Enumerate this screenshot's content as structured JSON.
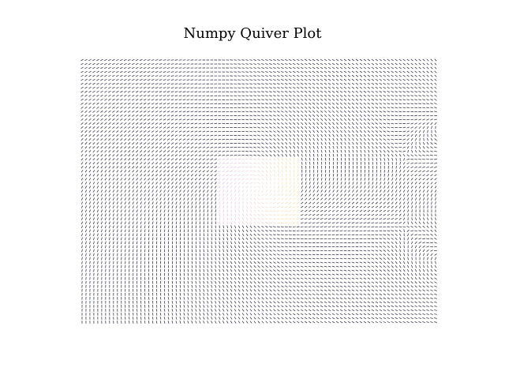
{
  "chart_data": {
    "type": "quiver",
    "title": "Numpy Quiver Plot",
    "xlabel": "",
    "ylabel": "",
    "axes_visible": false,
    "grid": false,
    "legend": "none",
    "grid_size": [
      91,
      67
    ],
    "x_range": [
      -5,
      5
    ],
    "y_range": [
      -3.67,
      3.67
    ],
    "field": {
      "sources": [
        {
          "x": 0.0,
          "y": 0.0,
          "strength": 1.0
        },
        {
          "x": 5.2,
          "y": 1.9,
          "strength": 0.35
        },
        {
          "x": 5.2,
          "y": -1.9,
          "strength": 0.35
        }
      ]
    },
    "arrow_color": "#1a1a33",
    "center_color_low": "#e6b8f0",
    "center_color_high": "#f5e29a"
  }
}
